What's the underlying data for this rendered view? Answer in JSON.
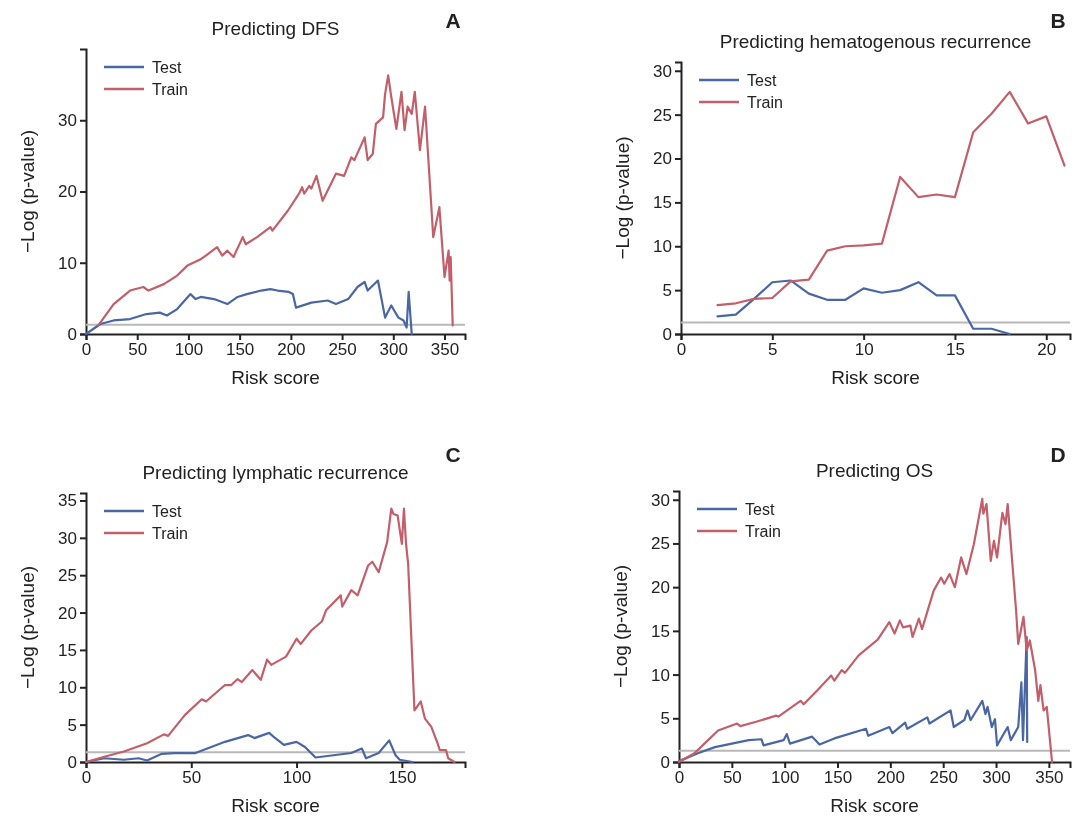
{
  "chart_data": [
    {
      "type": "line",
      "title": "Predicting DFS",
      "xlabel": "Risk score",
      "ylabel": "−Log (p-value)",
      "annotations": [
        "A"
      ],
      "xlim": [
        0,
        370
      ],
      "ylim": [
        0,
        40
      ],
      "xticks": [
        0,
        50,
        100,
        150,
        200,
        250,
        300,
        350
      ],
      "yticks": [
        0,
        10,
        20,
        30
      ],
      "legend": "top left",
      "grid": false,
      "ref_lines": [
        {
          "axis": "y",
          "value": 1.3,
          "color": "#b8b8b8"
        }
      ],
      "series": [
        {
          "name": "Test",
          "color": "#4a67a3",
          "x": [
            0,
            14,
            27,
            43,
            59,
            72,
            79,
            89,
            102,
            107,
            112,
            125,
            138,
            148,
            157,
            171,
            180,
            187,
            198,
            202,
            205,
            220,
            236,
            244,
            256,
            265,
            272,
            275,
            285,
            292,
            298,
            305,
            310,
            313,
            315,
            318
          ],
          "values": [
            0,
            1.4,
            1.9,
            2.1,
            2.8,
            3.0,
            2.6,
            3.5,
            5.6,
            4.9,
            5.2,
            4.9,
            4.2,
            5.2,
            5.6,
            6.1,
            6.3,
            6.1,
            5.9,
            5.6,
            3.7,
            4.4,
            4.7,
            4.2,
            4.9,
            6.6,
            7.3,
            6.1,
            7.5,
            2.3,
            4.0,
            2.3,
            1.9,
            0.9,
            5.9,
            0
          ]
        },
        {
          "name": "Train",
          "color": "#c25f6a",
          "x": [
            12,
            27,
            43,
            56,
            61,
            76,
            89,
            99,
            112,
            117,
            128,
            133,
            138,
            144,
            153,
            156,
            167,
            180,
            182,
            197,
            208,
            211,
            213,
            218,
            220,
            225,
            231,
            244,
            252,
            259,
            262,
            272,
            275,
            280,
            283,
            290,
            292,
            295,
            298,
            303,
            308,
            311,
            314,
            318,
            321,
            326,
            331,
            339,
            345,
            350,
            354,
            355,
            356,
            358
          ],
          "values": [
            1.2,
            4.2,
            6.1,
            6.6,
            6.1,
            7.0,
            8.2,
            9.6,
            10.5,
            11.0,
            12.2,
            11.0,
            11.7,
            10.8,
            13.6,
            12.6,
            13.6,
            15.0,
            14.5,
            17.3,
            19.7,
            20.6,
            19.7,
            20.8,
            20.4,
            22.2,
            18.7,
            22.5,
            22.2,
            24.8,
            24.4,
            27.6,
            24.4,
            25.3,
            29.5,
            30.4,
            33.7,
            36.3,
            33.3,
            28.8,
            34.0,
            28.6,
            31.9,
            30.9,
            34.0,
            25.8,
            31.9,
            13.6,
            17.8,
            8.0,
            11.7,
            7.5,
            10.8,
            1.2
          ]
        }
      ]
    },
    {
      "type": "line",
      "title": "Predicting hematogenous recurrence",
      "xlabel": "Risk score",
      "ylabel": "−Log (p-value)",
      "annotations": [
        "B"
      ],
      "xlim": [
        0,
        21.3
      ],
      "ylim": [
        0,
        31
      ],
      "xticks": [
        0,
        5,
        10,
        15,
        20
      ],
      "yticks": [
        0,
        5,
        10,
        15,
        20,
        25,
        30
      ],
      "legend": "top left",
      "grid": false,
      "ref_lines": [
        {
          "axis": "y",
          "value": 1.3,
          "color": "#b8b8b8"
        }
      ],
      "series": [
        {
          "name": "Test",
          "color": "#4a67a3",
          "x": [
            2,
            3,
            4,
            5,
            6,
            7,
            8,
            9,
            10,
            11,
            12,
            13,
            14,
            15,
            16,
            17,
            18
          ],
          "values": [
            2.0,
            2.2,
            4.0,
            5.9,
            6.1,
            4.6,
            3.9,
            3.9,
            5.2,
            4.7,
            5.0,
            5.9,
            4.4,
            4.4,
            0.6,
            0.6,
            0
          ]
        },
        {
          "name": "Train",
          "color": "#c25f6a",
          "x": [
            2,
            3,
            4,
            5,
            6,
            7,
            8,
            9,
            10,
            11,
            12,
            13,
            14,
            15,
            16,
            17,
            18,
            19,
            20,
            21
          ],
          "values": [
            3.3,
            3.5,
            4.0,
            4.1,
            6.0,
            6.2,
            9.5,
            10.0,
            10.1,
            10.3,
            17.9,
            15.6,
            15.9,
            15.6,
            23.0,
            25.1,
            27.6,
            24.0,
            24.8,
            19.2
          ]
        }
      ]
    },
    {
      "type": "line",
      "title": "Predicting lymphatic recurrence",
      "xlabel": "Risk score",
      "ylabel": "−Log (p-value)",
      "annotations": [
        "C"
      ],
      "xlim": [
        0,
        180
      ],
      "ylim": [
        0,
        36
      ],
      "xticks": [
        0,
        50,
        100,
        150
      ],
      "yticks": [
        0,
        5,
        10,
        15,
        20,
        25,
        30,
        35
      ],
      "legend": "top left",
      "grid": false,
      "ref_lines": [
        {
          "axis": "y",
          "value": 1.3,
          "color": "#b8b8b8"
        }
      ],
      "series": [
        {
          "name": "Test",
          "color": "#4a67a3",
          "x": [
            0,
            8.7,
            18,
            25,
            29,
            36,
            42,
            52,
            66,
            77,
            80,
            87,
            89,
            94,
            100,
            104,
            109,
            126,
            131,
            133,
            139,
            144,
            147,
            149,
            155
          ],
          "values": [
            0,
            0.5,
            0.3,
            0.5,
            0.2,
            1.1,
            1.2,
            1.2,
            2.7,
            3.6,
            3.2,
            3.9,
            3.4,
            2.3,
            2.7,
            2.0,
            0.6,
            1.2,
            1.8,
            0.5,
            1.2,
            2.9,
            0.9,
            0.3,
            0
          ]
        },
        {
          "name": "Train",
          "color": "#c25f6a",
          "x": [
            0,
            8.7,
            18,
            29,
            37,
            39,
            47,
            55,
            57,
            66,
            69,
            72,
            74,
            79,
            83,
            86,
            88,
            95,
            100,
            102,
            107,
            112,
            114,
            121,
            121.7,
            126,
            129,
            134,
            136,
            139,
            143,
            145,
            146,
            148,
            150,
            151,
            152,
            153,
            156,
            159,
            161,
            164,
            167,
            168,
            171,
            172,
            175
          ],
          "values": [
            0,
            0.7,
            1.4,
            2.5,
            3.7,
            3.5,
            6.3,
            8.4,
            8.1,
            10.3,
            10.3,
            11.1,
            10.7,
            12.3,
            11.0,
            13.7,
            13.0,
            14.1,
            16.5,
            15.8,
            17.6,
            18.8,
            20.3,
            22.3,
            20.8,
            23.0,
            22.3,
            26.3,
            26.8,
            25.4,
            29.4,
            33.9,
            33.2,
            33.0,
            29.2,
            33.9,
            29.2,
            26.5,
            6.9,
            8.1,
            5.8,
            4.7,
            2.5,
            1.6,
            1.6,
            0.5,
            0
          ]
        }
      ]
    },
    {
      "type": "line",
      "title": "Predicting OS",
      "xlabel": "Risk score",
      "ylabel": "−Log (p-value)",
      "annotations": [
        "D"
      ],
      "xlim": [
        0,
        370
      ],
      "ylim": [
        0,
        31
      ],
      "xticks": [
        0,
        50,
        100,
        150,
        200,
        250,
        300,
        350
      ],
      "yticks": [
        0,
        5,
        10,
        15,
        20,
        25,
        30
      ],
      "legend": "top left",
      "grid": false,
      "ref_lines": [
        {
          "axis": "y",
          "value": 1.3,
          "color": "#b8b8b8"
        }
      ],
      "series": [
        {
          "name": "Test",
          "color": "#4a67a3",
          "x": [
            0,
            17.8,
            34,
            66,
            78,
            80,
            99,
            102,
            105,
            126,
            133,
            147,
            177,
            179,
            199,
            202,
            214,
            216,
            235,
            237,
            257,
            260,
            270,
            273,
            276,
            287,
            290,
            292,
            296,
            299,
            301,
            311,
            314,
            321,
            324,
            325.5,
            329,
            329.5
          ],
          "values": [
            0.1,
            1.0,
            1.7,
            2.5,
            2.6,
            1.9,
            2.5,
            3.2,
            2.1,
            2.9,
            2.0,
            2.7,
            3.8,
            3.0,
            4.0,
            3.3,
            4.5,
            3.8,
            5.1,
            4.4,
            5.9,
            4.0,
            4.8,
            5.9,
            4.8,
            7.0,
            5.5,
            6.3,
            4.0,
            4.9,
            1.9,
            4.0,
            2.5,
            4.0,
            9.1,
            2.5,
            14.3,
            2.3
          ]
        },
        {
          "name": "Train",
          "color": "#c25f6a",
          "x": [
            0,
            14.6,
            27.5,
            37,
            55,
            58,
            73,
            92,
            94,
            115,
            118,
            131,
            144,
            147,
            154,
            157,
            170,
            188,
            199,
            204,
            209,
            212,
            219,
            221,
            227,
            230,
            241,
            248,
            251,
            256,
            261,
            267,
            272,
            279,
            287,
            288,
            291,
            295,
            298,
            301,
            306,
            309,
            311,
            319,
            321,
            326,
            329,
            332,
            337,
            340,
            342,
            345,
            348,
            353
          ],
          "values": [
            0,
            1.0,
            2.5,
            3.6,
            4.4,
            4.1,
            4.6,
            5.3,
            5.2,
            7.0,
            6.6,
            8.2,
            9.9,
            9.3,
            10.5,
            10.2,
            12.2,
            14.0,
            16.0,
            14.7,
            16.2,
            15.4,
            15.6,
            14.3,
            16.4,
            15.2,
            19.6,
            21.1,
            20.4,
            21.5,
            20.0,
            23.4,
            21.5,
            24.9,
            30.1,
            28.4,
            29.5,
            23.0,
            25.3,
            23.4,
            28.5,
            27.2,
            29.5,
            17.3,
            13.5,
            16.6,
            12.8,
            13.9,
            10.5,
            7.0,
            8.8,
            5.9,
            6.3,
            0
          ]
        }
      ]
    }
  ]
}
